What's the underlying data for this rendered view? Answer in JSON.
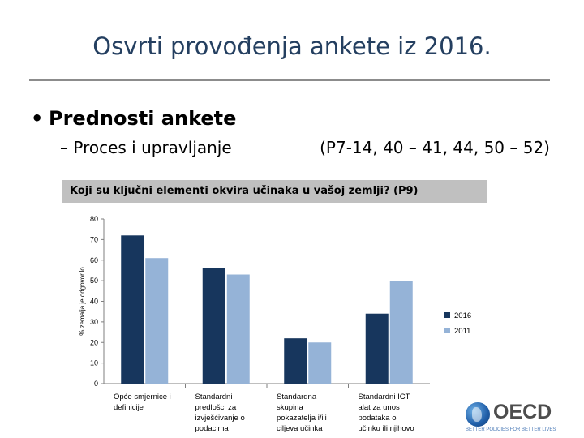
{
  "slide": {
    "title": "Osvrti provođenja ankete iz 2016.",
    "bullet_marker": "•",
    "bullet": "Prednosti ankete",
    "sub_marker": "–",
    "sub_left": "Proces i upravljanje",
    "sub_right": "(P7-14, 40 – 41, 44, 50 – 52)",
    "question": "Koji su ključni elementi okvira učinaka u vašoj zemlji? (P9)"
  },
  "logo": {
    "word": "OECD",
    "tagline": "BETTER POLICIES FOR BETTER LIVES",
    "icon": "oecd-globe-icon"
  },
  "colors": {
    "series_2016": "#17365d",
    "series_2011": "#95b3d7",
    "title": "#243f60",
    "question_bg": "#c0c0c0"
  },
  "chart_data": {
    "type": "bar",
    "title": "",
    "xlabel": "",
    "ylabel": "% zemalja je odgovorilo",
    "ylim": [
      0,
      80
    ],
    "yticks": [
      0,
      10,
      20,
      30,
      40,
      50,
      60,
      70,
      80
    ],
    "grid": false,
    "legend_position": "right",
    "categories": [
      [
        "Opće smjernice i",
        "definicije"
      ],
      [
        "Standardni",
        "predlošci za",
        "izvješćivanje o",
        "podacima"
      ],
      [
        "Standardna",
        "skupina",
        "pokazatelja i/ili",
        "ciljeva učinka"
      ],
      [
        "Standardni ICT",
        "alat za unos",
        "podataka o",
        "učinku ili njihovo"
      ]
    ],
    "series": [
      {
        "name": "2016",
        "values": [
          72,
          56,
          22,
          34
        ]
      },
      {
        "name": "2011",
        "values": [
          61,
          53,
          20,
          50
        ]
      }
    ]
  }
}
